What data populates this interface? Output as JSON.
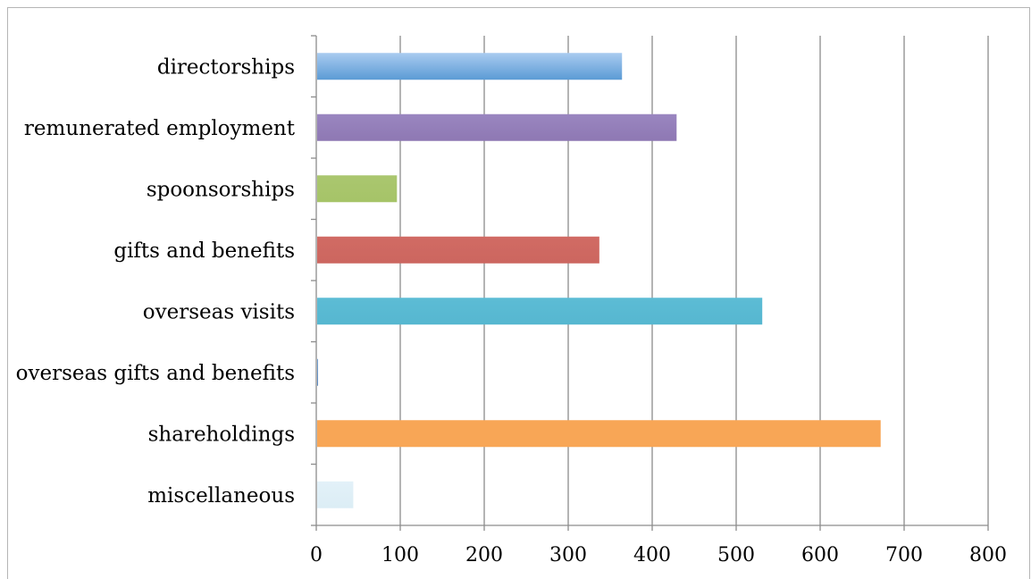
{
  "chart_data": {
    "type": "bar",
    "orientation": "horizontal",
    "categories": [
      "directorships",
      "remunerated employment",
      "spoonsorships",
      "gifts and benefits",
      "overseas visits",
      "overseas gifts and benefits",
      "shareholdings",
      "miscellaneous"
    ],
    "values": [
      363,
      428,
      95,
      336,
      530,
      1,
      671,
      43
    ],
    "colors": [
      "#5b9bd5",
      "#8e78b3",
      "#a6c468",
      "#cc665f",
      "#56b7d0",
      "#4f81bd",
      "#f8a656",
      "#dcedf5"
    ],
    "gradient_tops": [
      "#a9cbf0",
      "#9a86c0",
      "#aac66f",
      "#d16b64",
      "#5cbcd5",
      "#6d9ccf",
      "#f8a656",
      "#e2f1f8"
    ],
    "xlim": [
      0,
      800
    ],
    "xticks": [
      "0",
      "100",
      "200",
      "300",
      "400",
      "500",
      "600",
      "700",
      "800"
    ],
    "xtick_values": [
      0,
      100,
      200,
      300,
      400,
      500,
      600,
      700,
      800
    ],
    "grid": true,
    "legend": "none",
    "title": "",
    "xlabel": "",
    "ylabel": ""
  }
}
